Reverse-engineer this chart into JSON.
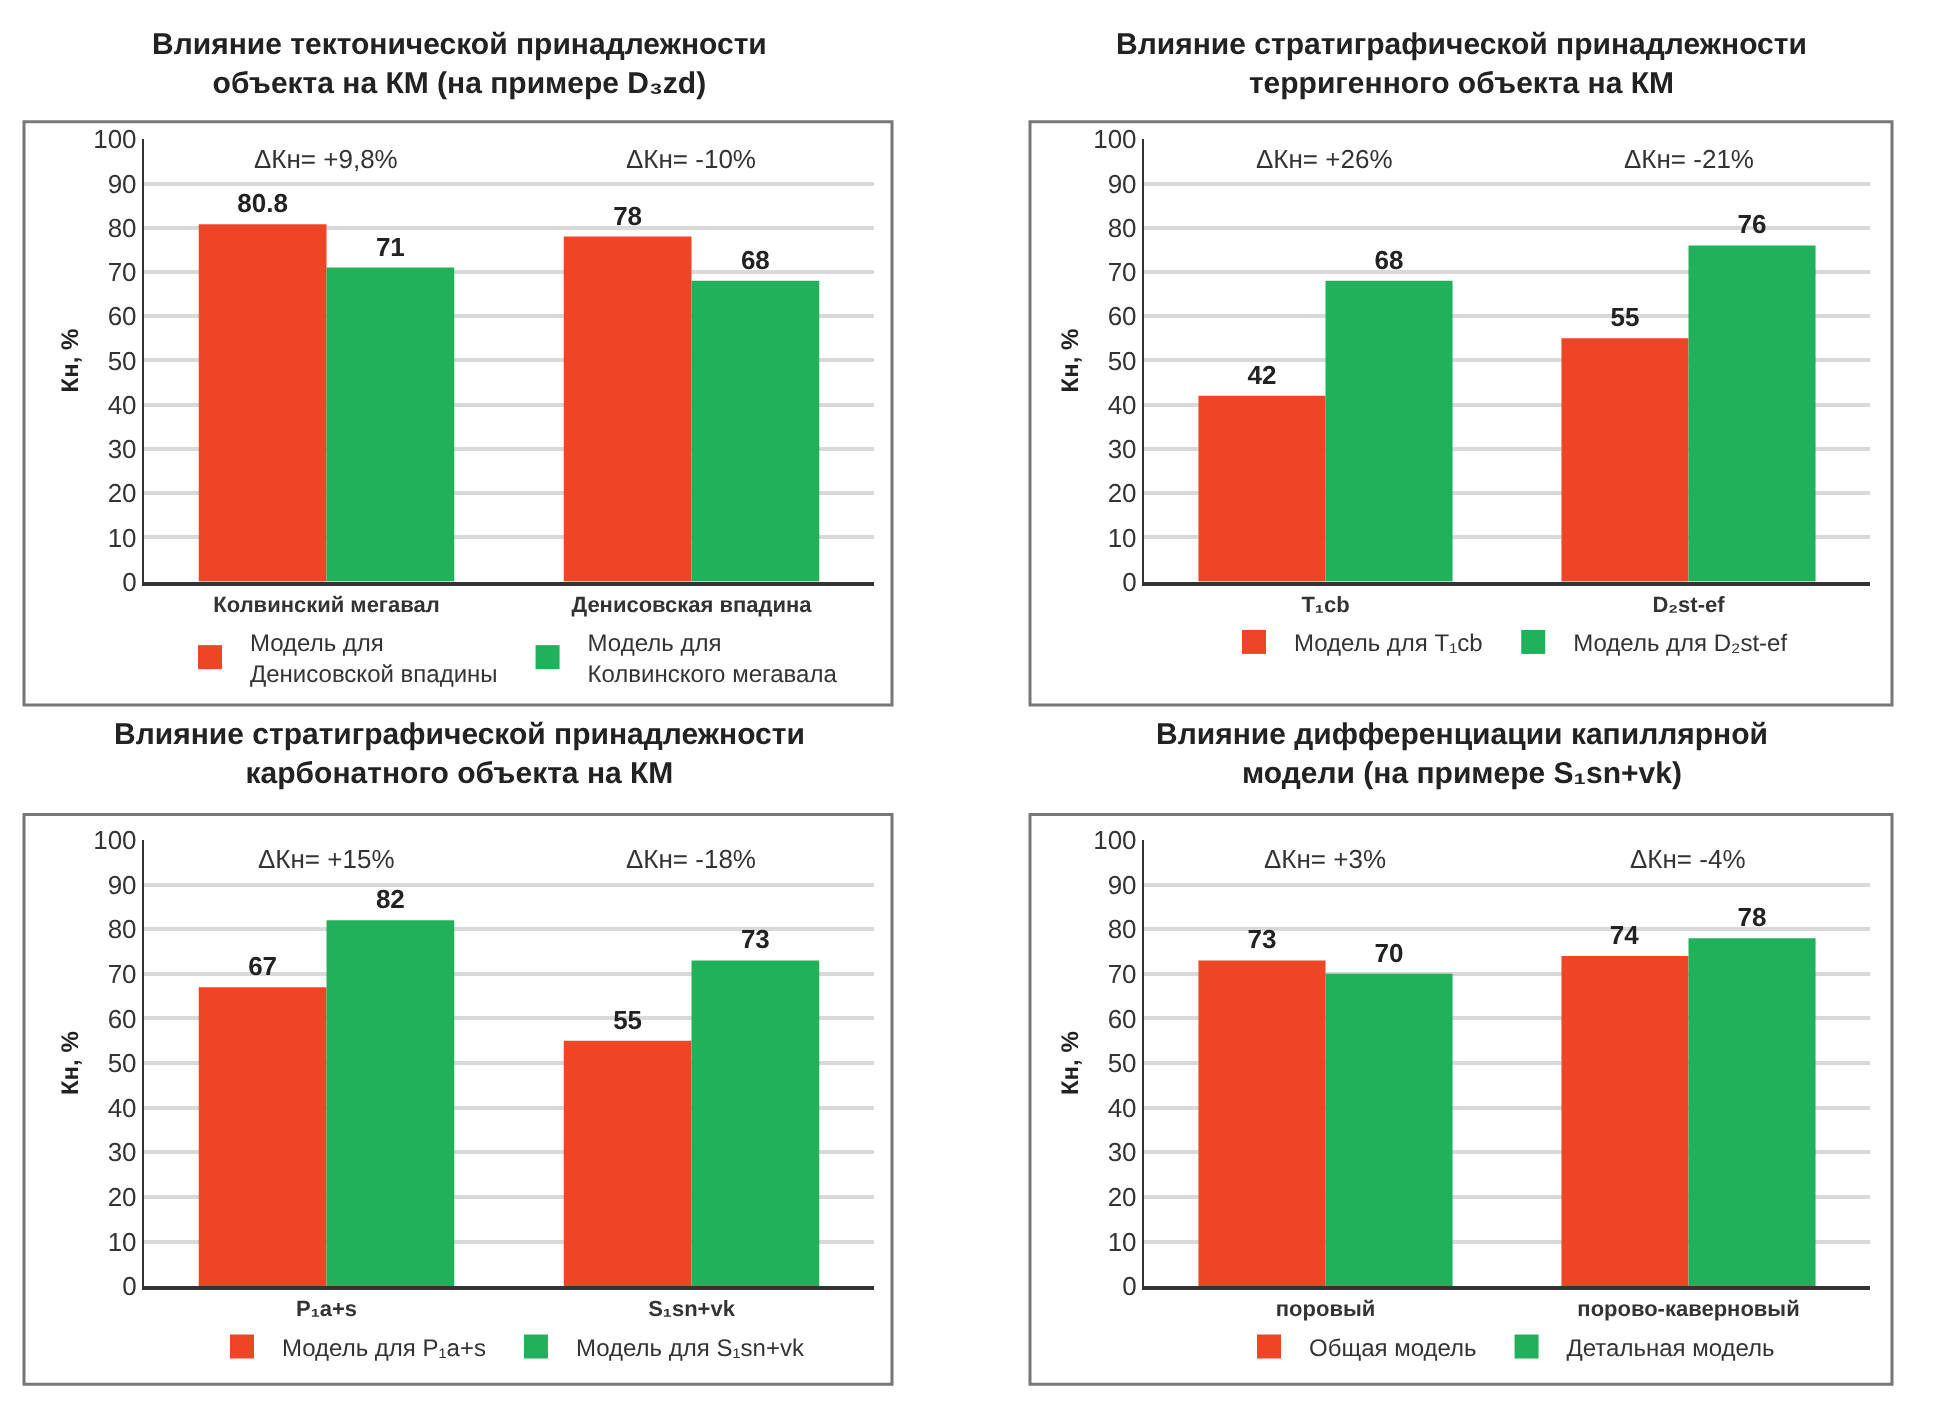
{
  "chart_data": [
    {
      "type": "bar",
      "title": "Влияние тектонической принадлежности объекта на КМ (на примере D₃zd)",
      "ylabel": "Кн, %",
      "categories": [
        "Колвинский мегавал",
        "Денисовская впадина"
      ],
      "series": [
        {
          "name": "Модель для Денисовской впадины",
          "color": "#ee4527",
          "values": [
            80.8,
            78
          ]
        },
        {
          "name": "Модель для Колвинского мегавала",
          "color": "#21b15a",
          "values": [
            71,
            68
          ]
        }
      ],
      "ylim": [
        0,
        100
      ],
      "yticks": [
        0,
        10,
        20,
        30,
        40,
        50,
        60,
        70,
        80,
        90,
        100
      ],
      "grid": "y",
      "legend": "bottom",
      "data_labels": true,
      "annotations": [
        "ΔКн= +9,8%",
        "ΔКн= -10%"
      ]
    },
    {
      "type": "bar",
      "title": "Влияние стратиграфической принадлежности терригенного объекта на КМ",
      "ylabel": "Кн, %",
      "categories": [
        "T₁cb",
        "D₂st-ef"
      ],
      "series": [
        {
          "name": "Модель для T₁cb",
          "color": "#ee4527",
          "values": [
            42,
            55
          ]
        },
        {
          "name": "Модель для D₂st-ef",
          "color": "#21b15a",
          "values": [
            68,
            76
          ]
        }
      ],
      "ylim": [
        0,
        100
      ],
      "yticks": [
        0,
        10,
        20,
        30,
        40,
        50,
        60,
        70,
        80,
        90,
        100
      ],
      "grid": "y",
      "legend": "bottom",
      "data_labels": true,
      "annotations": [
        "ΔКн= +26%",
        "ΔКн= -21%"
      ]
    },
    {
      "type": "bar",
      "title": "Влияние стратиграфической принадлежности карбонатного объекта на КМ",
      "ylabel": "Кн, %",
      "categories": [
        "P₁a+s",
        "S₁sn+vk"
      ],
      "series": [
        {
          "name": "Модель для P₁a+s",
          "color": "#ee4527",
          "values": [
            67,
            55
          ]
        },
        {
          "name": "Модель для S₁sn+vk",
          "color": "#21b15a",
          "values": [
            82,
            73
          ]
        }
      ],
      "ylim": [
        0,
        100
      ],
      "yticks": [
        0,
        10,
        20,
        30,
        40,
        50,
        60,
        70,
        80,
        90,
        100
      ],
      "grid": "y",
      "legend": "bottom",
      "data_labels": true,
      "annotations": [
        "ΔКн= +15%",
        "ΔКн= -18%"
      ]
    },
    {
      "type": "bar",
      "title": "Влияние дифференциации капиллярной модели (на примере S₁sn+vk)",
      "ylabel": "Кн, %",
      "categories": [
        "поровый",
        "порово-каверновый"
      ],
      "series": [
        {
          "name": "Общая модель",
          "color": "#ee4527",
          "values": [
            73,
            74
          ]
        },
        {
          "name": "Детальная модель",
          "color": "#21b15a",
          "values": [
            70,
            78
          ]
        }
      ],
      "ylim": [
        0,
        100
      ],
      "yticks": [
        0,
        10,
        20,
        30,
        40,
        50,
        60,
        70,
        80,
        90,
        100
      ],
      "grid": "y",
      "legend": "bottom",
      "data_labels": true,
      "annotations": [
        "ΔКн= +3%",
        "ΔКн= -4%"
      ]
    }
  ]
}
